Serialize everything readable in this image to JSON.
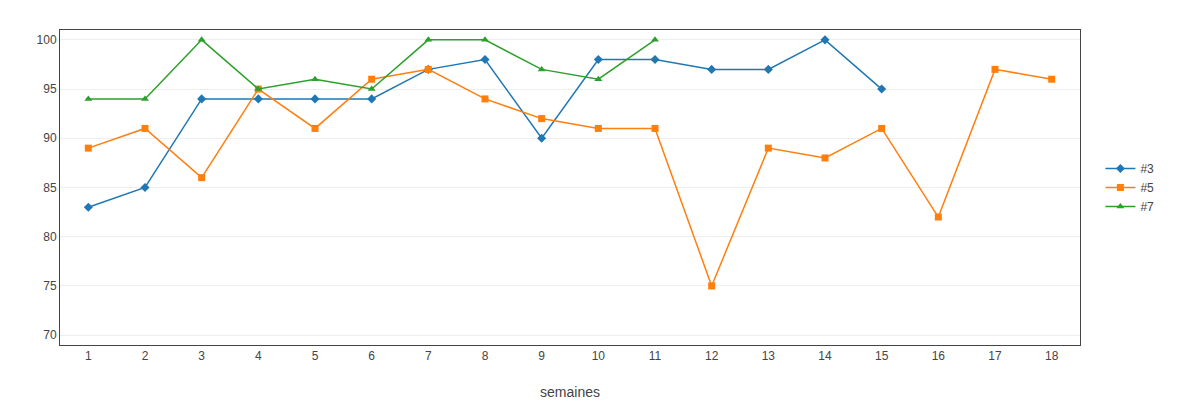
{
  "chart_data": {
    "type": "line",
    "xlabel": "semaines",
    "xlim": [
      0.5,
      18.5
    ],
    "ylim": [
      69,
      101
    ],
    "xticks": [
      1,
      2,
      3,
      4,
      5,
      6,
      7,
      8,
      9,
      10,
      11,
      12,
      13,
      14,
      15,
      16,
      17,
      18
    ],
    "yticks": [
      70,
      75,
      80,
      85,
      90,
      95,
      100
    ],
    "grid": "y",
    "legend": "right",
    "series": [
      {
        "name": "#3",
        "marker": "diamond",
        "x": [
          1,
          2,
          3,
          4,
          5,
          6,
          7,
          8,
          9,
          10,
          11,
          12,
          13,
          14,
          15
        ],
        "values": [
          83,
          85,
          94,
          94,
          94,
          94,
          97,
          98,
          90,
          98,
          98,
          97,
          97,
          100,
          95
        ]
      },
      {
        "name": "#5",
        "marker": "square",
        "x": [
          1,
          2,
          3,
          4,
          5,
          6,
          7,
          8,
          9,
          10,
          11,
          12,
          13,
          14,
          15,
          16,
          17,
          18
        ],
        "values": [
          89,
          91,
          86,
          95,
          91,
          96,
          97,
          94,
          92,
          91,
          91,
          75,
          89,
          88,
          91,
          82,
          97,
          96
        ]
      },
      {
        "name": "#7",
        "marker": "triangle-up",
        "x": [
          1,
          2,
          3,
          4,
          5,
          6,
          7,
          8,
          9,
          10,
          11
        ],
        "values": [
          94,
          94,
          100,
          95,
          96,
          95,
          100,
          100,
          97,
          96,
          100
        ]
      }
    ]
  }
}
